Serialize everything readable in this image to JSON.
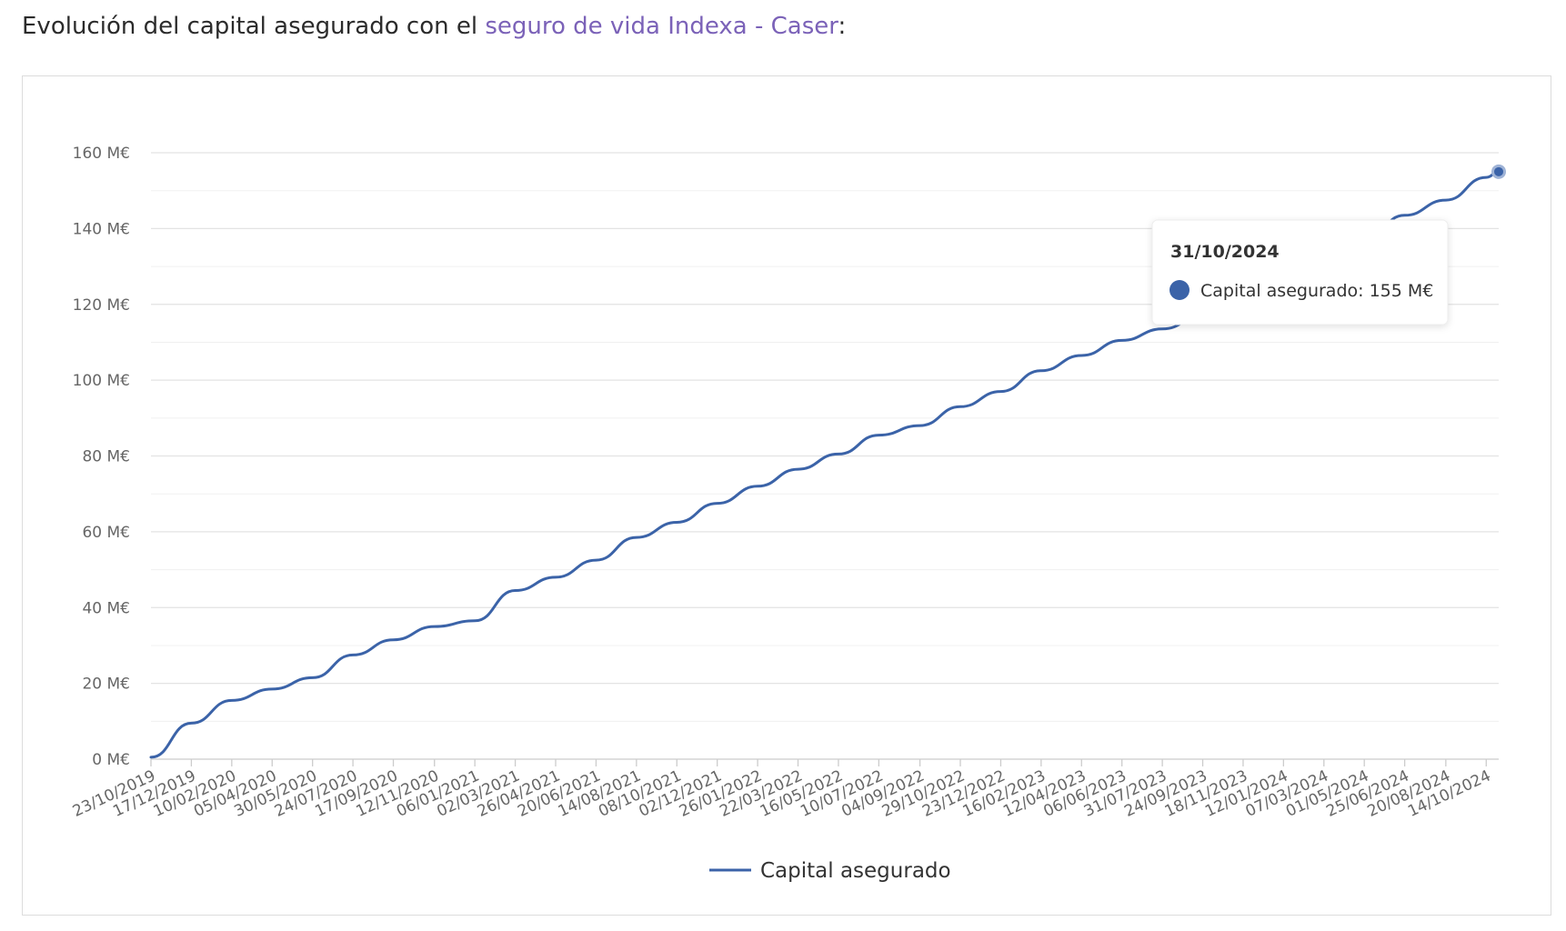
{
  "intro": {
    "prefix": "Evolución del capital asegurado con el ",
    "link_text": "seguro de vida Indexa - Caser",
    "suffix": ":"
  },
  "colors": {
    "series": "#3b63a8",
    "link": "#7b62b8",
    "grid": "#e6e6e6",
    "axis_text": "#666666"
  },
  "chart_data": {
    "type": "line",
    "title": "",
    "xlabel": "",
    "ylabel": "",
    "y_tick_labels": [
      "0 M€",
      "20 M€",
      "40 M€",
      "60 M€",
      "80 M€",
      "100 M€",
      "120 M€",
      "140 M€",
      "160 M€"
    ],
    "ylim": [
      0,
      160
    ],
    "x_tick_labels": [
      "23/10/2019",
      "17/12/2019",
      "10/02/2020",
      "05/04/2020",
      "30/05/2020",
      "24/07/2020",
      "17/09/2020",
      "12/11/2020",
      "06/01/2021",
      "02/03/2021",
      "26/04/2021",
      "20/06/2021",
      "14/08/2021",
      "08/10/2021",
      "02/12/2021",
      "26/01/2022",
      "22/03/2022",
      "16/05/2022",
      "10/07/2022",
      "04/09/2022",
      "29/10/2022",
      "23/12/2022",
      "16/02/2023",
      "12/04/2023",
      "06/06/2023",
      "31/07/2023",
      "24/09/2023",
      "18/11/2023",
      "12/01/2024",
      "07/03/2024",
      "01/05/2024",
      "25/06/2024",
      "20/08/2024",
      "14/10/2024"
    ],
    "x_range": [
      "23/10/2019",
      "31/10/2024"
    ],
    "grid": true,
    "legend_position": "bottom-center",
    "series": [
      {
        "name": "Capital asegurado",
        "x": [
          "23/10/2019",
          "17/12/2019",
          "10/02/2020",
          "05/04/2020",
          "30/05/2020",
          "24/07/2020",
          "17/09/2020",
          "12/11/2020",
          "06/01/2021",
          "02/03/2021",
          "26/04/2021",
          "20/06/2021",
          "14/08/2021",
          "08/10/2021",
          "02/12/2021",
          "26/01/2022",
          "22/03/2022",
          "16/05/2022",
          "10/07/2022",
          "04/09/2022",
          "29/10/2022",
          "23/12/2022",
          "16/02/2023",
          "12/04/2023",
          "06/06/2023",
          "31/07/2023",
          "24/09/2023",
          "18/11/2023",
          "12/01/2024",
          "07/03/2024",
          "01/05/2024",
          "25/06/2024",
          "20/08/2024",
          "14/10/2024",
          "31/10/2024"
        ],
        "values": [
          0.5,
          9.5,
          15.5,
          18.5,
          21.5,
          27.5,
          31.5,
          35.0,
          36.5,
          44.5,
          48.0,
          52.5,
          58.5,
          62.5,
          67.5,
          72.0,
          76.5,
          80.5,
          85.5,
          88.0,
          93.0,
          97.0,
          102.5,
          106.5,
          110.5,
          113.5,
          117.0,
          121.0,
          126.0,
          131.5,
          137.0,
          143.5,
          147.5,
          153.5,
          155.0
        ]
      }
    ],
    "tooltip": {
      "date": "31/10/2024",
      "label": "Capital asegurado: 155 M€"
    }
  }
}
